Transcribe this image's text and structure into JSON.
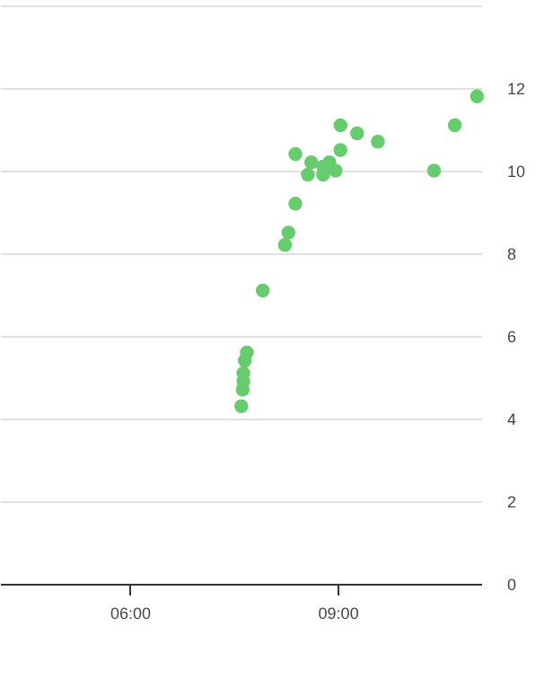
{
  "chart_data": {
    "type": "scatter",
    "x": [
      11.01,
      10.69,
      10.39,
      9.58,
      9.28,
      9.04,
      9.04,
      8.39,
      8.62,
      8.57,
      8.79,
      8.79,
      8.88,
      8.97,
      8.39,
      8.29,
      8.24,
      7.92,
      7.69,
      7.66,
      7.64,
      7.64,
      7.63,
      7.61
    ],
    "values": [
      11.8,
      11.1,
      10.0,
      10.7,
      10.9,
      11.1,
      10.5,
      10.4,
      10.2,
      9.9,
      9.9,
      10.1,
      10.2,
      10.0,
      9.2,
      8.5,
      8.2,
      7.1,
      5.6,
      5.4,
      5.1,
      4.9,
      4.7,
      4.3
    ],
    "color": "#66cc6e",
    "xlim": [
      4.13,
      11.07
    ],
    "xticks": [
      {
        "value": 6,
        "label": "06:00"
      },
      {
        "value": 9,
        "label": "09:00"
      }
    ],
    "ylim": [
      0,
      14
    ],
    "yticks": [
      0,
      2,
      4,
      6,
      8,
      10,
      12,
      {
        "value": 14,
        "label": null
      }
    ],
    "grid": "y",
    "marker": "circle"
  }
}
